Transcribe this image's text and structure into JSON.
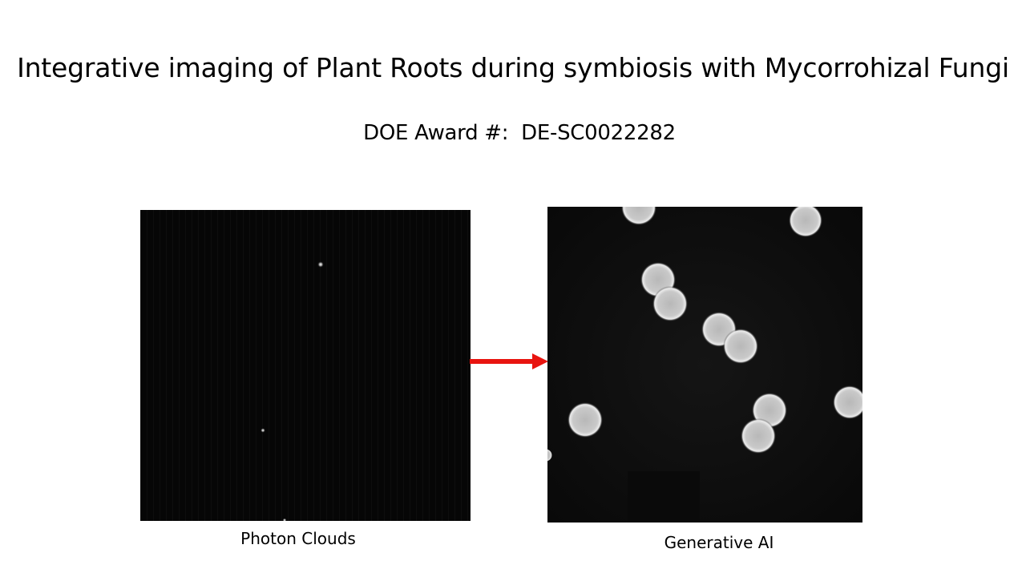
{
  "slide": {
    "title": "Integrative imaging of Plant Roots during symbiosis with Mycorrohizal Fungi",
    "award": "DOE Award #:  DE-SC0022282"
  },
  "panels": {
    "left_caption": "Photon Clouds",
    "right_caption": "Generative AI"
  },
  "colors": {
    "arrow": "#e8140f",
    "panel_background": "#0b0b0b",
    "bead": "#d9d9d9"
  },
  "icons": {
    "arrow": "arrow-right-icon"
  }
}
